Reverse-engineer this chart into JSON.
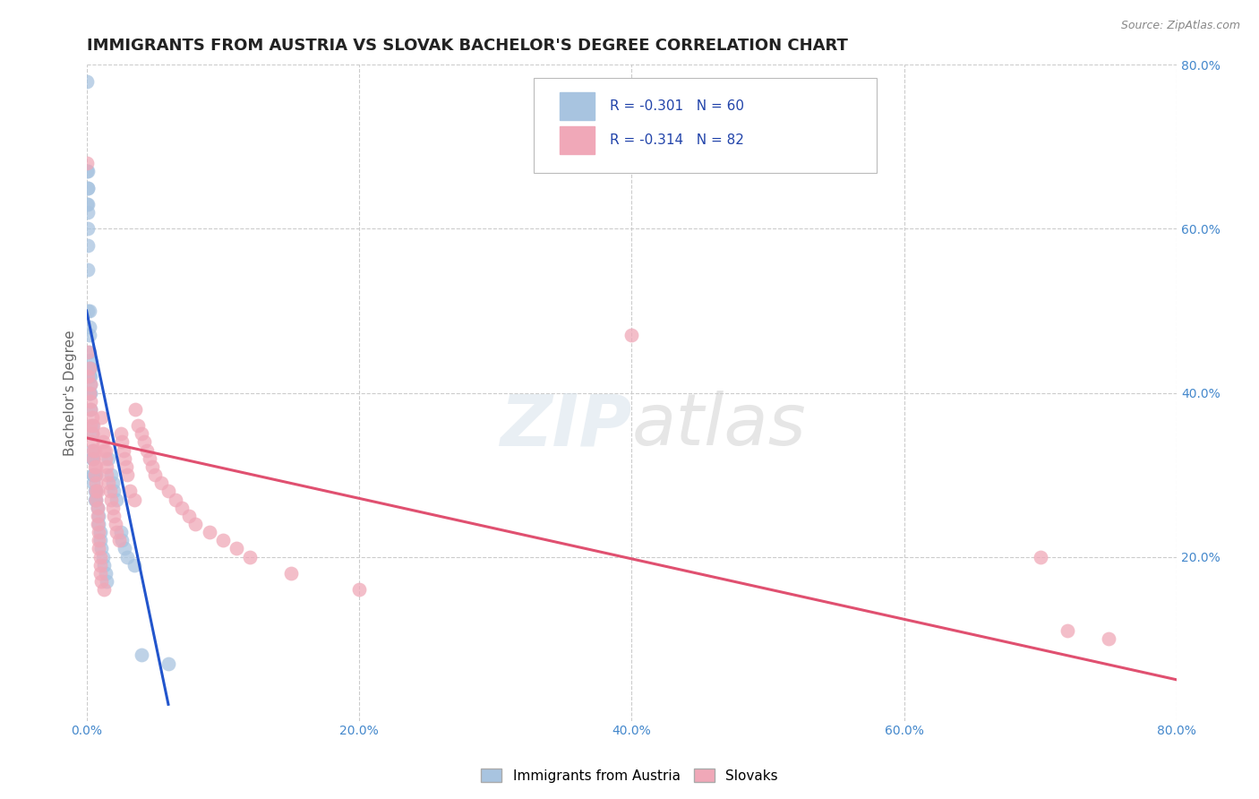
{
  "title": "IMMIGRANTS FROM AUSTRIA VS SLOVAK BACHELOR'S DEGREE CORRELATION CHART",
  "source": "Source: ZipAtlas.com",
  "ylabel": "Bachelor's Degree",
  "legend_r1": "R = -0.301",
  "legend_n1": "N = 60",
  "legend_r2": "R = -0.314",
  "legend_n2": "N = 82",
  "legend_label1": "Immigrants from Austria",
  "legend_label2": "Slovaks",
  "xmin": 0.0,
  "xmax": 0.8,
  "ymin": 0.0,
  "ymax": 0.8,
  "austria_color": "#a8c4e0",
  "slovak_color": "#f0a8b8",
  "austria_line_color": "#2255cc",
  "slovak_line_color": "#e05070",
  "austria_x": [
    0.0,
    0.0,
    0.0,
    0.001,
    0.001,
    0.001,
    0.001,
    0.001,
    0.001,
    0.001,
    0.001,
    0.001,
    0.002,
    0.002,
    0.002,
    0.002,
    0.002,
    0.002,
    0.002,
    0.003,
    0.003,
    0.003,
    0.003,
    0.003,
    0.003,
    0.004,
    0.004,
    0.004,
    0.004,
    0.005,
    0.005,
    0.005,
    0.005,
    0.006,
    0.006,
    0.007,
    0.007,
    0.007,
    0.008,
    0.009,
    0.009,
    0.01,
    0.01,
    0.011,
    0.012,
    0.013,
    0.014,
    0.015,
    0.016,
    0.018,
    0.019,
    0.02,
    0.022,
    0.025,
    0.026,
    0.028,
    0.03,
    0.035,
    0.04,
    0.06
  ],
  "austria_y": [
    0.78,
    0.67,
    0.63,
    0.62,
    0.65,
    0.65,
    0.67,
    0.63,
    0.6,
    0.58,
    0.55,
    0.5,
    0.48,
    0.5,
    0.47,
    0.45,
    0.43,
    0.42,
    0.4,
    0.44,
    0.43,
    0.42,
    0.41,
    0.4,
    0.38,
    0.36,
    0.35,
    0.33,
    0.32,
    0.3,
    0.3,
    0.32,
    0.29,
    0.28,
    0.27,
    0.3,
    0.28,
    0.27,
    0.26,
    0.25,
    0.24,
    0.23,
    0.22,
    0.21,
    0.2,
    0.19,
    0.18,
    0.17,
    0.32,
    0.3,
    0.29,
    0.28,
    0.27,
    0.23,
    0.22,
    0.21,
    0.2,
    0.19,
    0.08,
    0.07
  ],
  "slovak_x": [
    0.0,
    0.001,
    0.001,
    0.002,
    0.002,
    0.003,
    0.003,
    0.003,
    0.003,
    0.004,
    0.004,
    0.004,
    0.005,
    0.005,
    0.005,
    0.006,
    0.006,
    0.006,
    0.007,
    0.007,
    0.007,
    0.007,
    0.008,
    0.008,
    0.008,
    0.008,
    0.009,
    0.009,
    0.009,
    0.01,
    0.01,
    0.01,
    0.011,
    0.011,
    0.012,
    0.012,
    0.013,
    0.013,
    0.014,
    0.014,
    0.015,
    0.015,
    0.016,
    0.017,
    0.018,
    0.019,
    0.02,
    0.021,
    0.022,
    0.024,
    0.025,
    0.026,
    0.027,
    0.028,
    0.029,
    0.03,
    0.032,
    0.035,
    0.036,
    0.038,
    0.04,
    0.042,
    0.044,
    0.046,
    0.048,
    0.05,
    0.055,
    0.06,
    0.065,
    0.07,
    0.075,
    0.08,
    0.09,
    0.1,
    0.11,
    0.12,
    0.15,
    0.2,
    0.4,
    0.7,
    0.72,
    0.75
  ],
  "slovak_y": [
    0.68,
    0.42,
    0.45,
    0.4,
    0.43,
    0.38,
    0.41,
    0.36,
    0.39,
    0.35,
    0.37,
    0.34,
    0.36,
    0.33,
    0.32,
    0.31,
    0.33,
    0.3,
    0.29,
    0.31,
    0.28,
    0.27,
    0.26,
    0.28,
    0.25,
    0.24,
    0.23,
    0.22,
    0.21,
    0.2,
    0.19,
    0.18,
    0.17,
    0.37,
    0.35,
    0.34,
    0.33,
    0.16,
    0.33,
    0.32,
    0.31,
    0.3,
    0.29,
    0.28,
    0.27,
    0.26,
    0.25,
    0.24,
    0.23,
    0.22,
    0.35,
    0.34,
    0.33,
    0.32,
    0.31,
    0.3,
    0.28,
    0.27,
    0.38,
    0.36,
    0.35,
    0.34,
    0.33,
    0.32,
    0.31,
    0.3,
    0.29,
    0.28,
    0.27,
    0.26,
    0.25,
    0.24,
    0.23,
    0.22,
    0.21,
    0.2,
    0.18,
    0.16,
    0.47,
    0.2,
    0.11,
    0.1
  ],
  "austria_trend_x": [
    0.0,
    0.06
  ],
  "austria_trend_y": [
    0.5,
    0.02
  ],
  "slovak_trend_x": [
    0.0,
    0.8
  ],
  "slovak_trend_y": [
    0.345,
    0.05
  ],
  "xtick_vals": [
    0.0,
    0.2,
    0.4,
    0.6,
    0.8
  ],
  "ytick_vals": [
    0.2,
    0.4,
    0.6,
    0.8
  ],
  "background_color": "#ffffff",
  "grid_color": "#cccccc",
  "title_color": "#222222",
  "tick_color": "#4488cc",
  "title_fontsize": 13,
  "axis_label_fontsize": 11,
  "tick_fontsize": 10,
  "legend_fontsize": 11
}
